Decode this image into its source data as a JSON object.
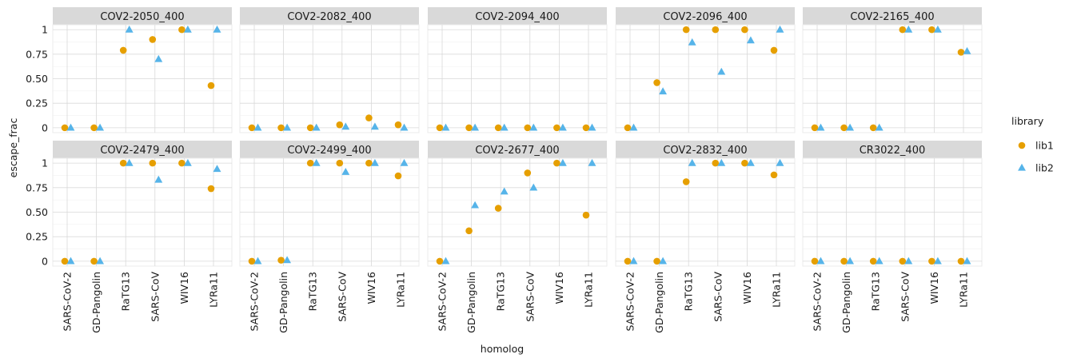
{
  "chart_data": {
    "type": "scatter",
    "xlabel": "homolog",
    "ylabel": "escape_frac",
    "categories": [
      "SARS-CoV-2",
      "GD-Pangolin",
      "RaTG13",
      "SARS-CoV",
      "WIV16",
      "LYRa11"
    ],
    "ylim": [
      -0.05,
      1.05
    ],
    "yticks": [
      0,
      0.25,
      0.5,
      0.75,
      1
    ],
    "ytick_labels": [
      "0",
      "0.25",
      "0.50",
      "0.75",
      "1"
    ],
    "legend": {
      "title": "library",
      "position": "right",
      "entries": [
        {
          "name": "lib1",
          "shape": "circle",
          "color": "#E69F00"
        },
        {
          "name": "lib2",
          "shape": "triangle",
          "color": "#56B4E9"
        }
      ]
    },
    "grid": true,
    "facets": [
      {
        "title": "COV2-2050_400",
        "lib1": [
          0,
          0,
          0.79,
          0.9,
          1.0,
          0.43
        ],
        "lib2": [
          0,
          0,
          1.0,
          0.7,
          1.0,
          1.0
        ]
      },
      {
        "title": "COV2-2082_400",
        "lib1": [
          0,
          0,
          0,
          0.03,
          0.1,
          0.03
        ],
        "lib2": [
          0,
          0,
          0,
          0.01,
          0.01,
          0
        ]
      },
      {
        "title": "COV2-2094_400",
        "lib1": [
          0,
          0,
          0,
          0,
          0,
          0
        ],
        "lib2": [
          0,
          0,
          0,
          0,
          0,
          0
        ]
      },
      {
        "title": "COV2-2096_400",
        "lib1": [
          0,
          0.46,
          1.0,
          1.0,
          1.0,
          0.79
        ],
        "lib2": [
          0,
          0.37,
          0.87,
          0.57,
          0.89,
          1.0
        ]
      },
      {
        "title": "COV2-2165_400",
        "lib1": [
          0,
          0,
          0,
          1.0,
          1.0,
          0.77
        ],
        "lib2": [
          0,
          0,
          0,
          1.0,
          1.0,
          0.78
        ]
      },
      {
        "title": "COV2-2479_400",
        "lib1": [
          0,
          0,
          1.0,
          1.0,
          1.0,
          0.74
        ],
        "lib2": [
          0,
          0,
          1.0,
          0.83,
          1.0,
          0.94
        ]
      },
      {
        "title": "COV2-2499_400",
        "lib1": [
          0,
          0.01,
          1.0,
          1.0,
          1.0,
          0.87
        ],
        "lib2": [
          0,
          0.01,
          1.0,
          0.91,
          1.0,
          1.0
        ]
      },
      {
        "title": "COV2-2677_400",
        "lib1": [
          0,
          0.31,
          0.54,
          0.9,
          1.0,
          0.47
        ],
        "lib2": [
          0,
          0.57,
          0.71,
          0.75,
          1.0,
          1.0
        ]
      },
      {
        "title": "COV2-2832_400",
        "lib1": [
          0,
          0,
          0.81,
          1.0,
          1.0,
          0.88
        ],
        "lib2": [
          0,
          0,
          1.0,
          1.0,
          1.0,
          1.0
        ]
      },
      {
        "title": "CR3022_400",
        "lib1": [
          0,
          0,
          0,
          0,
          0,
          0
        ],
        "lib2": [
          0,
          0,
          0,
          0,
          0,
          0
        ]
      }
    ]
  }
}
